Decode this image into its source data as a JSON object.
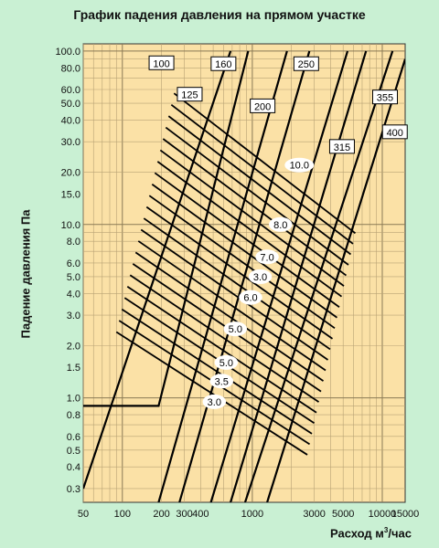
{
  "chart_data": {
    "type": "line",
    "title": "График падения давления на прямом участке",
    "ylabel": "Падение давления Па",
    "xlabel": "Расход м",
    "xlabel_sup": "3",
    "xlabel_tail": "/час",
    "x_scale": "log",
    "y_scale": "log",
    "xlim": [
      50,
      15000
    ],
    "ylim": [
      0.25,
      110
    ],
    "grid": true,
    "x_tick_labels": [
      {
        "v": 50,
        "t": "50"
      },
      {
        "v": 100,
        "t": "100"
      },
      {
        "v": 200,
        "t": "200"
      },
      {
        "v": 300,
        "t": "300"
      },
      {
        "v": 400,
        "t": "400"
      },
      {
        "v": 1000,
        "t": "1000"
      },
      {
        "v": 3000,
        "t": "3000"
      },
      {
        "v": 5000,
        "t": "5000"
      },
      {
        "v": 10000,
        "t": "10000"
      },
      {
        "v": 15000,
        "t": "15000"
      }
    ],
    "y_tick_labels": [
      {
        "v": 0.3,
        "t": "0.3"
      },
      {
        "v": 0.4,
        "t": "0.4"
      },
      {
        "v": 0.5,
        "t": "0.5"
      },
      {
        "v": 0.6,
        "t": "0.6"
      },
      {
        "v": 0.8,
        "t": "0.8"
      },
      {
        "v": 1.0,
        "t": "1.0"
      },
      {
        "v": 1.5,
        "t": "1.5"
      },
      {
        "v": 2.0,
        "t": "2.0"
      },
      {
        "v": 3.0,
        "t": "3.0"
      },
      {
        "v": 4.0,
        "t": "4.0"
      },
      {
        "v": 5.0,
        "t": "5.0"
      },
      {
        "v": 6.0,
        "t": "6.0"
      },
      {
        "v": 8.0,
        "t": "8.0"
      },
      {
        "v": 10.0,
        "t": "10.0"
      },
      {
        "v": 15.0,
        "t": "15.0"
      },
      {
        "v": 20.0,
        "t": "20.0"
      },
      {
        "v": 30.0,
        "t": "30.0"
      },
      {
        "v": 40.0,
        "t": "40.0"
      },
      {
        "v": 50.0,
        "t": "50.0"
      },
      {
        "v": 60.0,
        "t": "60.0"
      },
      {
        "v": 80.0,
        "t": "80.0"
      },
      {
        "v": 100.0,
        "t": "100.0"
      }
    ],
    "series": [
      {
        "name": "100",
        "label_at": [
          200,
          85
        ],
        "points": [
          [
            50,
            0.3
          ],
          [
            680,
            100
          ]
        ]
      },
      {
        "name": "125",
        "label_at": [
          330,
          56
        ],
        "points": [
          [
            50,
            0.9
          ],
          [
            190,
            0.9
          ],
          [
            930,
            100
          ]
        ]
      },
      {
        "name": "160",
        "label_at": [
          600,
          84
        ],
        "points": [
          [
            190,
            0.25
          ],
          [
            1850,
            100
          ]
        ]
      },
      {
        "name": "200",
        "label_at": [
          1200,
          48
        ],
        "points": [
          [
            275,
            0.25
          ],
          [
            2750,
            100
          ]
        ]
      },
      {
        "name": "250",
        "label_at": [
          2600,
          84
        ],
        "points": [
          [
            480,
            0.25
          ],
          [
            5400,
            100
          ]
        ]
      },
      {
        "name": "315",
        "label_at": [
          4900,
          28
        ],
        "points": [
          [
            680,
            0.25
          ],
          [
            7500,
            100
          ]
        ]
      },
      {
        "name": "355",
        "label_at": [
          10500,
          54
        ],
        "points": [
          [
            880,
            0.25
          ],
          [
            12000,
            100
          ]
        ]
      },
      {
        "name": "400",
        "label_at": [
          12500,
          34
        ],
        "points": [
          [
            1300,
            0.25
          ],
          [
            15000,
            90
          ]
        ]
      }
    ],
    "velocity_lines": {
      "labels": [
        {
          "t": "10.0",
          "x": 2300,
          "y": 22
        },
        {
          "t": "8.0",
          "x": 1650,
          "y": 10
        },
        {
          "t": "7.0",
          "x": 1300,
          "y": 6.5
        },
        {
          "t": "3.0",
          "x": 1150,
          "y": 5.0
        },
        {
          "t": "6.0",
          "x": 970,
          "y": 3.8
        },
        {
          "t": "5.0",
          "x": 740,
          "y": 2.5
        },
        {
          "t": "5.0",
          "x": 630,
          "y": 1.6
        },
        {
          "t": "3.5",
          "x": 580,
          "y": 1.25
        },
        {
          "t": "3.0",
          "x": 510,
          "y": 0.95
        }
      ],
      "start": [
        [
          250,
          57
        ],
        [
          90,
          2.4
        ]
      ],
      "end": [
        [
          6200,
          8.9
        ],
        [
          2650,
          0.47
        ]
      ],
      "count": 22
    }
  }
}
